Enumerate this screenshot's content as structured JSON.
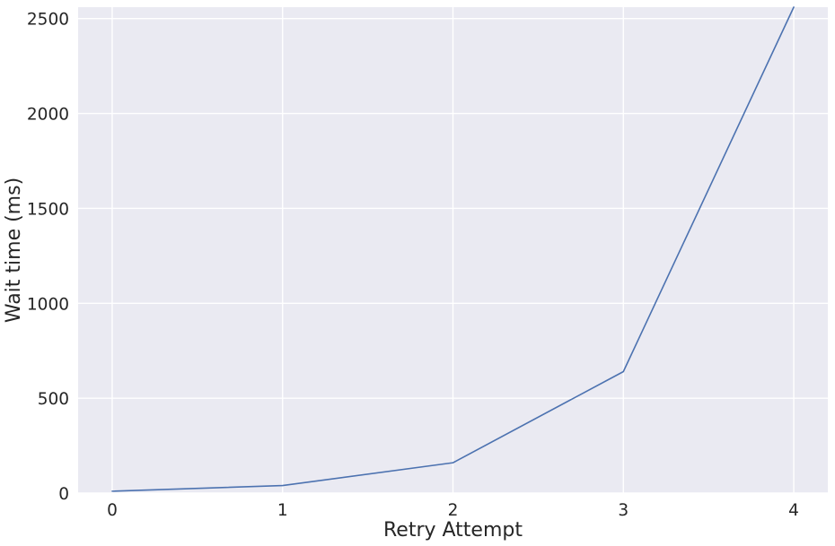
{
  "chart_data": {
    "type": "line",
    "title": "",
    "xlabel": "Retry Attempt",
    "ylabel": "Wait time (ms)",
    "x": [
      0,
      1,
      2,
      3,
      4
    ],
    "series": [
      {
        "values": [
          10,
          40,
          160,
          640,
          2560
        ],
        "color": "#4c72b0"
      }
    ],
    "xticks": [
      0,
      1,
      2,
      3,
      4
    ],
    "xtick_labels": [
      "0",
      "1",
      "2",
      "3",
      "4"
    ],
    "yticks": [
      0,
      500,
      1000,
      1500,
      2000,
      2500
    ],
    "ytick_labels": [
      "0",
      "500",
      "1000",
      "1500",
      "2000",
      "2500"
    ],
    "xlim": [
      -0.2,
      4.2
    ],
    "ylim": [
      0,
      2560
    ],
    "grid": true,
    "legend": "none",
    "background": "#eaeaf2"
  }
}
